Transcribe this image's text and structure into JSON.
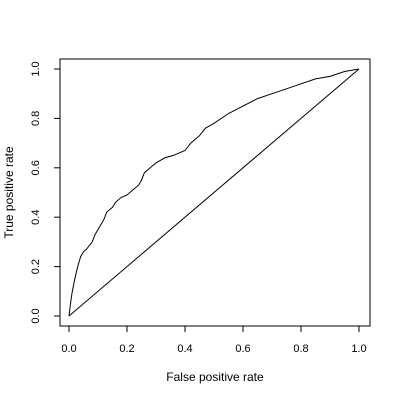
{
  "chart_data": {
    "type": "line",
    "title": "",
    "xlabel": "False positive rate",
    "ylabel": "True positive rate",
    "xlim": [
      0,
      1
    ],
    "ylim": [
      0,
      1
    ],
    "xticks": [
      0.0,
      0.2,
      0.4,
      0.6,
      0.8,
      1.0
    ],
    "xtick_labels": [
      "0.0",
      "0.2",
      "0.4",
      "0.6",
      "0.8",
      "1.0"
    ],
    "yticks": [
      0.0,
      0.2,
      0.4,
      0.6,
      0.8,
      1.0
    ],
    "ytick_labels": [
      "0.0",
      "0.2",
      "0.4",
      "0.6",
      "0.8",
      "1.0"
    ],
    "grid": false,
    "legend": "none",
    "series": [
      {
        "role": "roc-curve",
        "x": [
          0.0,
          0.005,
          0.01,
          0.015,
          0.02,
          0.03,
          0.04,
          0.05,
          0.06,
          0.08,
          0.09,
          0.1,
          0.11,
          0.12,
          0.13,
          0.14,
          0.15,
          0.16,
          0.18,
          0.2,
          0.22,
          0.24,
          0.25,
          0.26,
          0.28,
          0.3,
          0.33,
          0.36,
          0.4,
          0.42,
          0.45,
          0.47,
          0.5,
          0.55,
          0.6,
          0.65,
          0.7,
          0.75,
          0.8,
          0.85,
          0.9,
          0.95,
          1.0
        ],
        "y": [
          0.0,
          0.05,
          0.09,
          0.12,
          0.15,
          0.2,
          0.24,
          0.26,
          0.27,
          0.3,
          0.33,
          0.35,
          0.37,
          0.39,
          0.42,
          0.43,
          0.44,
          0.46,
          0.48,
          0.49,
          0.51,
          0.53,
          0.55,
          0.58,
          0.6,
          0.62,
          0.64,
          0.65,
          0.67,
          0.7,
          0.73,
          0.76,
          0.78,
          0.82,
          0.85,
          0.88,
          0.9,
          0.92,
          0.94,
          0.96,
          0.97,
          0.99,
          1.0
        ]
      },
      {
        "role": "diagonal-reference",
        "x": [
          0,
          1
        ],
        "y": [
          0,
          1
        ]
      }
    ]
  }
}
